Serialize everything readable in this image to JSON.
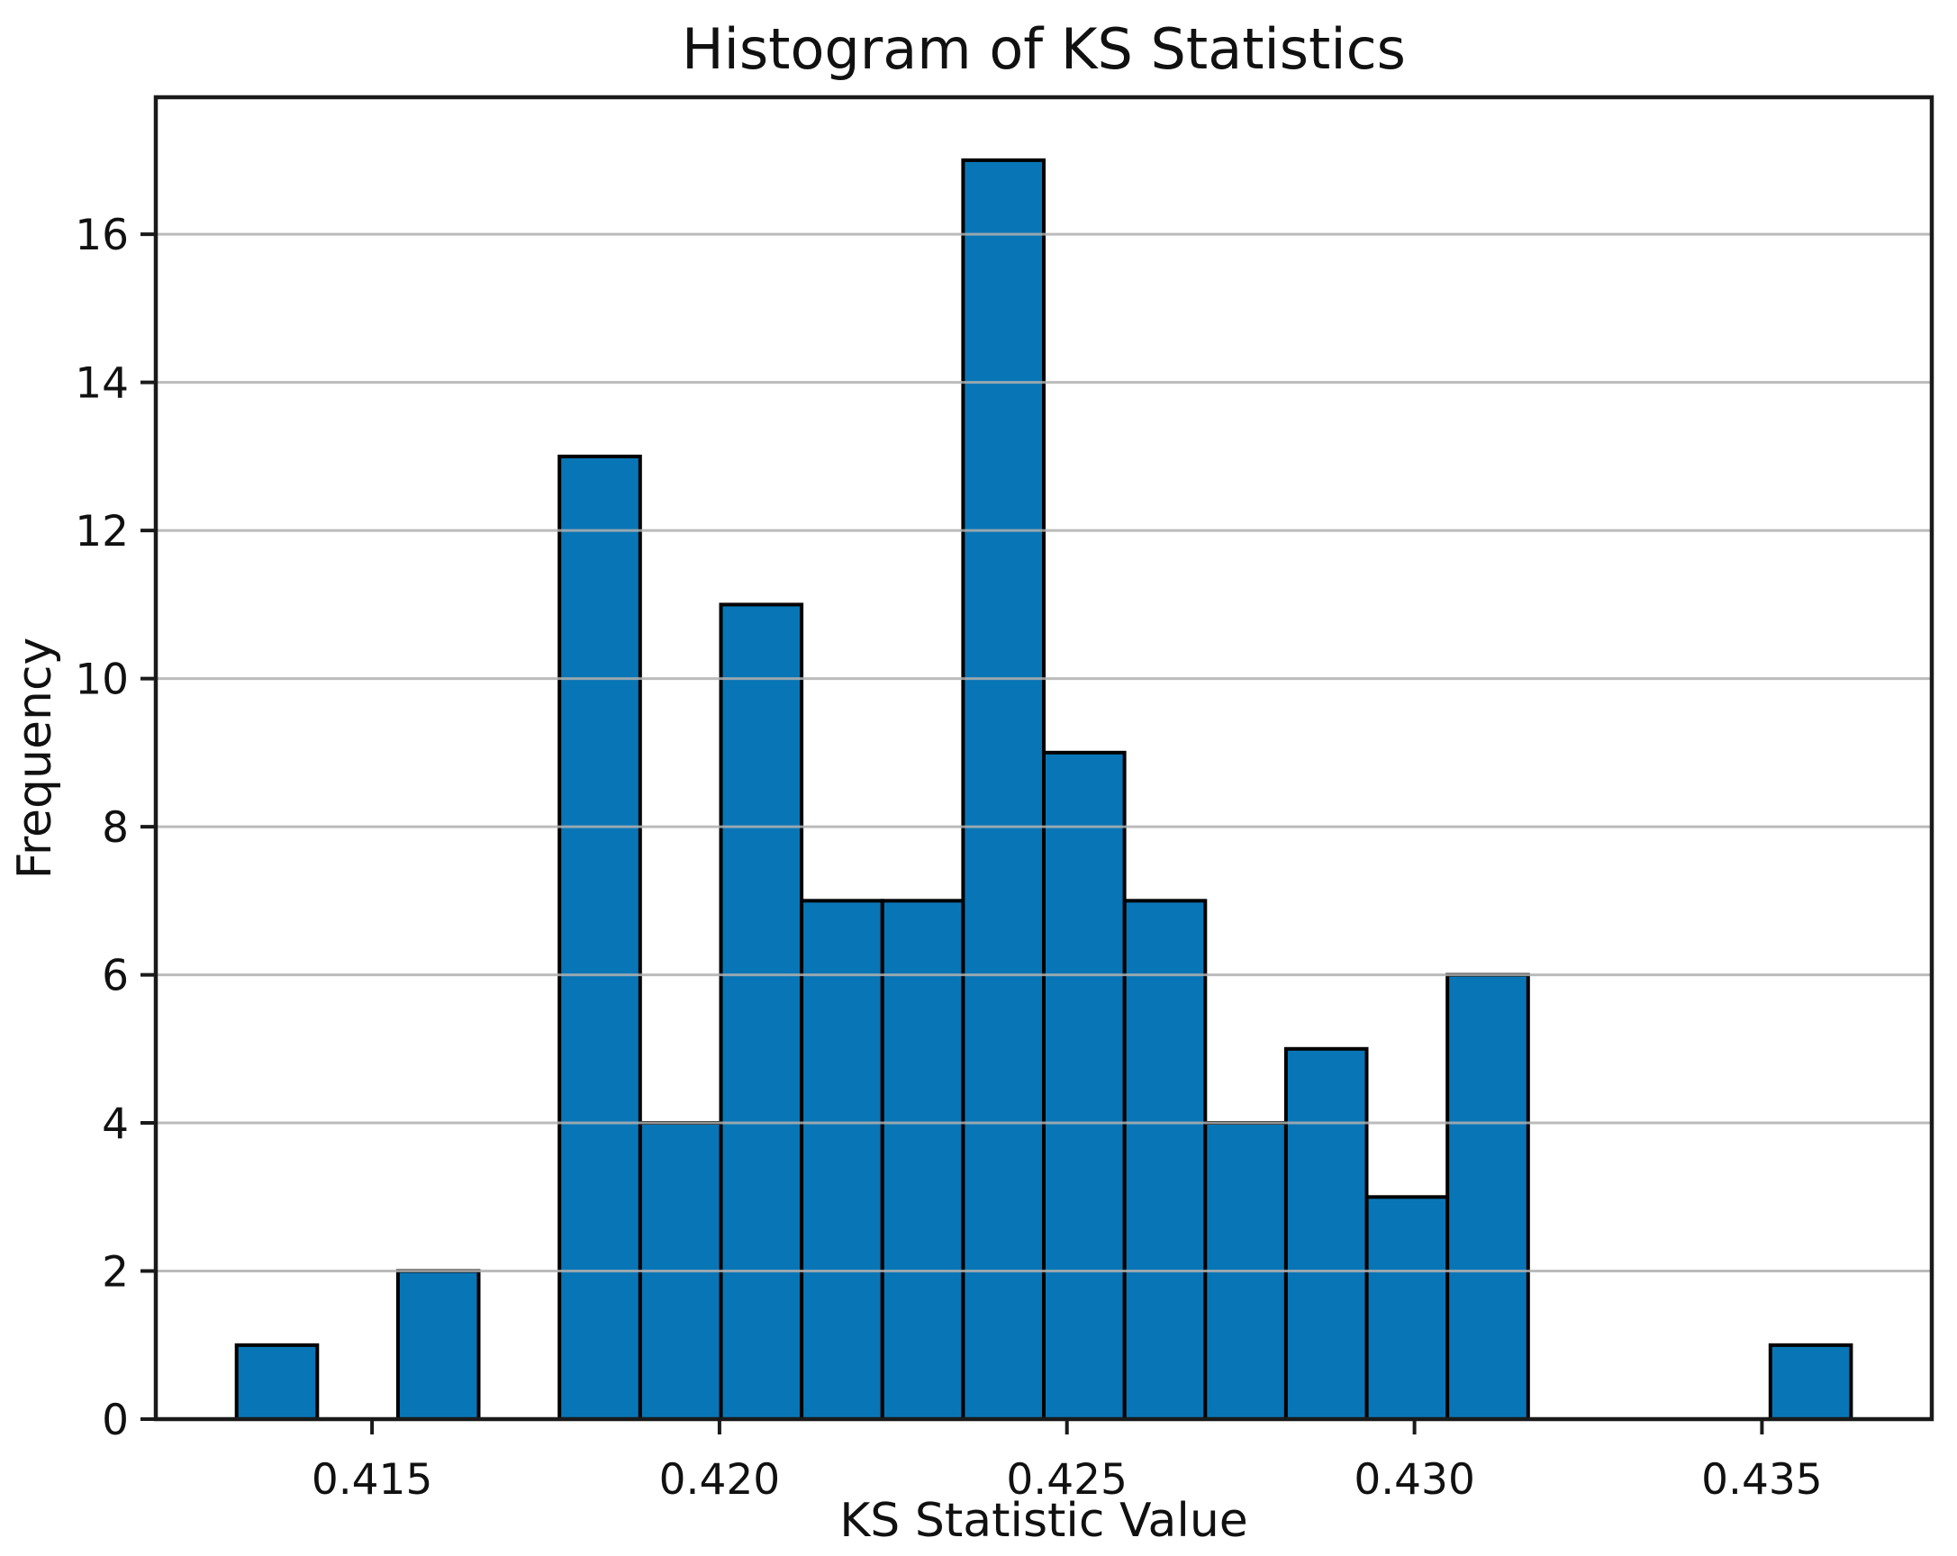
{
  "chart_data": {
    "type": "bar",
    "subtype": "histogram",
    "title": "Histogram of KS Statistics",
    "xlabel": "KS Statistic Value",
    "ylabel": "Frequency",
    "bin_start": 0.413051,
    "bin_width": 0.0011616,
    "counts": [
      1,
      0,
      2,
      0,
      13,
      4,
      11,
      7,
      7,
      17,
      9,
      7,
      4,
      5,
      3,
      6,
      0,
      0,
      0,
      1
    ],
    "total_observations": 97,
    "xticks": [
      0.415,
      0.42,
      0.425,
      0.43,
      0.435
    ],
    "xtick_labels": [
      "0.415",
      "0.420",
      "0.425",
      "0.430",
      "0.435"
    ],
    "yticks": [
      0,
      2,
      4,
      6,
      8,
      10,
      12,
      14,
      16
    ],
    "ytick_labels": [
      "0",
      "2",
      "4",
      "6",
      "8",
      "10",
      "12",
      "14",
      "16"
    ],
    "xlim": [
      0.411889,
      0.437444
    ],
    "ylim": [
      0,
      17.85
    ],
    "grid": "horizontal-only",
    "legend": "none",
    "colors": {
      "bar_fill": "#0876b6",
      "bar_edge": "#000000",
      "grid": "#b0b0b0",
      "spine": "#1a1a1a",
      "text": "#111111",
      "background": "#ffffff"
    }
  }
}
